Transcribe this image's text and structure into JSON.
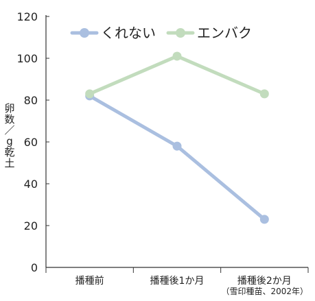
{
  "chart_data": {
    "type": "line",
    "categories": [
      "播種前",
      "播種後1か月",
      "播種後2か月"
    ],
    "series": [
      {
        "name": "くれない",
        "values": [
          82,
          58,
          23
        ],
        "color": "#aabfe0"
      },
      {
        "name": "エンバク",
        "values": [
          83,
          101,
          83
        ],
        "color": "#c2dcbd"
      }
    ],
    "ylim": [
      0,
      120
    ],
    "yticks": [
      0,
      20,
      40,
      60,
      80,
      100,
      120
    ],
    "ylabel_chars": [
      "卵",
      "数",
      "／",
      "g",
      "乾",
      "土"
    ],
    "grid": false,
    "legend_position": "top-left"
  },
  "source_note": "（雪印種苗、2002年）"
}
